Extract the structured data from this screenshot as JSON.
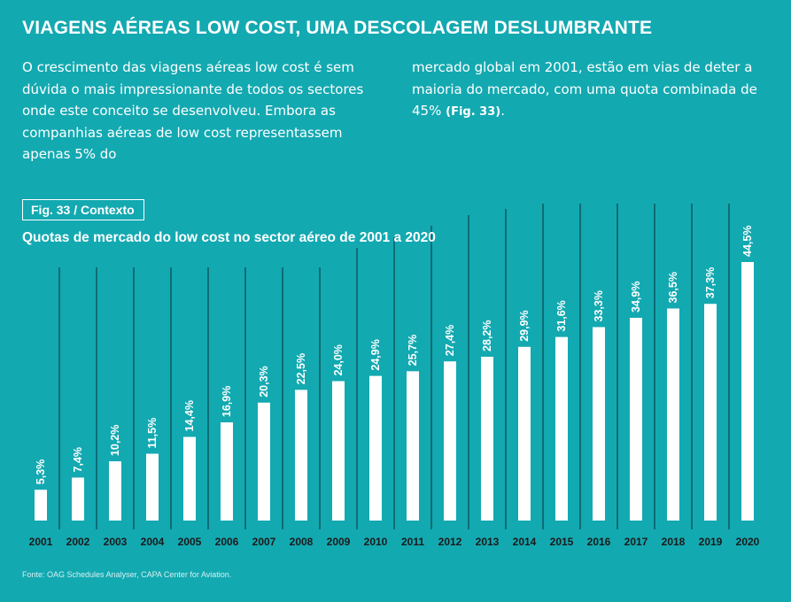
{
  "article": {
    "headline": "VIAGENS AÉREAS LOW COST, UMA DESCOLAGEM DESLUMBRANTE",
    "intro_col1": "O crescimento das viagens aéreas low cost é sem dúvida o mais impressionante de todos os sectores onde este conceito se desenvolveu. Embora as companhias aéreas de low cost representassem apenas 5% do",
    "intro_col2": "mercado global em 2001, estão em vias de deter a maioria do mercado, com uma quota combinada de 45%",
    "intro_col2_ref": "(Fig. 33)",
    "intro_col2_end": "."
  },
  "figure": {
    "label": "Fig. 33 / Contexto",
    "title": "Quotas de mercado do low cost no sector aéreo de 2001 a 2020",
    "source": "Fonte: OAG Schedules Analyser, CAPA Center for Aviation."
  },
  "colors": {
    "background": "#13a9b1",
    "bar": "#ffffff",
    "text": "#ffffff",
    "year_label": "#1a1a1a",
    "separator": "#0d4d55"
  },
  "chart_data": {
    "type": "bar",
    "title": "Quotas de mercado do low cost no sector aéreo de 2001 a 2020",
    "xlabel": "",
    "ylabel": "",
    "categories": [
      "2001",
      "2002",
      "2003",
      "2004",
      "2005",
      "2006",
      "2007",
      "2008",
      "2009",
      "2010",
      "2011",
      "2012",
      "2013",
      "2014",
      "2015",
      "2016",
      "2017",
      "2018",
      "2019",
      "2020"
    ],
    "values": [
      5.3,
      7.4,
      10.2,
      11.5,
      14.4,
      16.9,
      20.3,
      22.5,
      24.0,
      24.9,
      25.7,
      27.4,
      28.2,
      29.9,
      31.6,
      33.3,
      34.9,
      36.5,
      37.3,
      44.5
    ],
    "value_labels": [
      "5,3%",
      "7,4%",
      "10,2%",
      "11,5%",
      "14,4%",
      "16,9%",
      "20,3%",
      "22,5%",
      "24,0%",
      "24,9%",
      "25,7%",
      "27,4%",
      "28,2%",
      "29,9%",
      "31,6%",
      "33,3%",
      "34,9%",
      "36,5%",
      "37,3%",
      "44,5%"
    ],
    "ylim": [
      0,
      44.5
    ],
    "grid": false,
    "legend": "none"
  }
}
